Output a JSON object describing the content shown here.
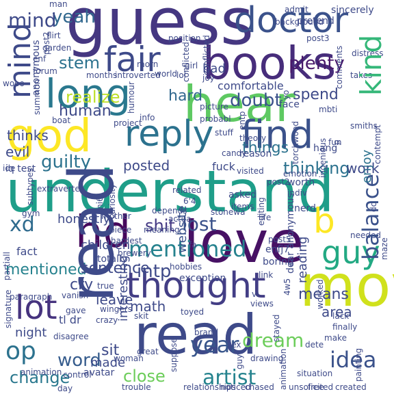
{
  "words": [
    {
      "text": "guess",
      "color": "#453781"
    },
    {
      "text": "doctor",
      "color": "#3b528b"
    },
    {
      "text": "books",
      "color": "#472d7b"
    },
    {
      "text": "hear",
      "color": "#5ec962"
    },
    {
      "text": "long",
      "color": "#2a788e"
    },
    {
      "text": "fair",
      "color": "#3e4a89"
    },
    {
      "text": "god",
      "color": "#fde725"
    },
    {
      "text": "reply",
      "color": "#2c728e"
    },
    {
      "text": "find",
      "color": "#3b528b"
    },
    {
      "text": "understand",
      "color": "#1f9e89"
    },
    {
      "text": "love",
      "color": "#471164"
    },
    {
      "text": "read",
      "color": "#3e4a89"
    },
    {
      "text": "thought",
      "color": "#433e85"
    },
    {
      "text": "movie",
      "color": "#d0e11c"
    },
    {
      "text": "b",
      "color": "#fde725"
    },
    {
      "text": "guy",
      "color": "#23a983"
    },
    {
      "text": "lot",
      "color": "#46337e"
    },
    {
      "text": "op",
      "color": "#2c728e"
    },
    {
      "text": "year",
      "color": "#39568c"
    },
    {
      "text": "dream",
      "color": "#6ccd5a"
    },
    {
      "text": "idea",
      "color": "#3b528b"
    },
    {
      "text": "artist",
      "color": "#25838e"
    },
    {
      "text": "close",
      "color": "#6ccd5a"
    },
    {
      "text": "change",
      "color": "#2a788e"
    },
    {
      "text": "word",
      "color": "#365c8d"
    },
    {
      "text": "xd",
      "color": "#2f6b8e"
    },
    {
      "text": "shit",
      "color": "#443983"
    },
    {
      "text": "lost",
      "color": "#3b528b"
    },
    {
      "text": "mentioned",
      "color": "#26828e"
    },
    {
      "text": "nice",
      "color": "#472d7b"
    },
    {
      "text": "hd",
      "color": "#46085c"
    },
    {
      "text": "kind",
      "color": "#35b779"
    },
    {
      "text": "mind",
      "color": "#3e4a89"
    },
    {
      "text": "stem",
      "color": "#2c728e"
    },
    {
      "text": "yeah",
      "color": "#31688e"
    },
    {
      "text": "doubt",
      "color": "#3b528b"
    },
    {
      "text": "plenty",
      "color": "#48186a"
    },
    {
      "text": "spend",
      "color": "#3e4a89"
    },
    {
      "text": "hard",
      "color": "#31688e"
    },
    {
      "text": "realize",
      "color": "#bddf26"
    },
    {
      "text": "guilty",
      "color": "#2c728e"
    },
    {
      "text": "things",
      "color": "#2c728e"
    },
    {
      "text": "thinking",
      "color": "#2c728e"
    },
    {
      "text": "work",
      "color": "#3e4a89"
    },
    {
      "text": "enjoy",
      "color": "#2c728e"
    },
    {
      "text": "posted",
      "color": "#3e4a89"
    },
    {
      "text": "fuck",
      "color": "#3e4a89"
    },
    {
      "text": "website",
      "color": "#3b528b"
    },
    {
      "text": "balance",
      "color": "#3b528b"
    },
    {
      "text": "sentence",
      "color": "#3e4a89"
    },
    {
      "text": "honestly",
      "color": "#3e4a89"
    },
    {
      "text": "intp",
      "color": "#3e4a89"
    },
    {
      "text": "cry",
      "color": "#3e4a89"
    },
    {
      "text": "leave",
      "color": "#3e4a89"
    },
    {
      "text": "math",
      "color": "#3e4a89"
    },
    {
      "text": "means",
      "color": "#3e4a89"
    },
    {
      "text": "area",
      "color": "#3e4a89"
    },
    {
      "text": "night",
      "color": "#3e4a89"
    },
    {
      "text": "sit",
      "color": "#3e4a89"
    },
    {
      "text": "made",
      "color": "#3e4a89"
    },
    {
      "text": "interesting",
      "color": "#3e4a89"
    },
    {
      "text": "reading",
      "color": "#3e4a89"
    },
    {
      "text": "children",
      "color": "#3e4a89"
    },
    {
      "text": "human",
      "color": "#3e4a89"
    },
    {
      "text": "bad",
      "color": "#3e4a89"
    },
    {
      "text": "comfortable",
      "color": "#3e4a89"
    },
    {
      "text": "tl dr",
      "color": "#3e4a89"
    },
    {
      "text": "evil",
      "color": "#3e4a89"
    },
    {
      "text": "thinks",
      "color": "#3e4a89"
    },
    {
      "text": "anonymous",
      "color": "#3e4a89"
    },
    {
      "text": "iq test",
      "color": "#3e4a89"
    },
    {
      "text": "extraverte",
      "color": "#3e4a89"
    },
    {
      "text": "mother",
      "color": "#3e4a89"
    },
    {
      "text": "depends",
      "color": "#3e4a89"
    },
    {
      "text": "asked",
      "color": "#3e4a89"
    },
    {
      "text": "exception",
      "color": "#3e4a89"
    },
    {
      "text": "dear anonymous",
      "color": "#3e4a89"
    },
    {
      "text": "enfj7",
      "color": "#3e4a89"
    },
    {
      "text": "post5",
      "color": "#3e4a89"
    },
    {
      "text": "4w5",
      "color": "#3e4a89"
    },
    {
      "text": "worked",
      "color": "#3e4a89"
    },
    {
      "text": "boring",
      "color": "#3e4a89"
    },
    {
      "text": "nerd",
      "color": "#3e4a89"
    },
    {
      "text": "dc",
      "color": "#3e4a89"
    },
    {
      "text": "worth",
      "color": "#3e4a89"
    },
    {
      "text": "indiv",
      "color": "#3e4a89"
    },
    {
      "text": "hang",
      "color": "#3e4a89"
    },
    {
      "text": "candy",
      "color": "#3e4a89"
    },
    {
      "text": "theory",
      "color": "#3e4a89"
    },
    {
      "text": "reason",
      "color": "#3e4a89"
    },
    {
      "text": "emotion",
      "color": "#3e4a89"
    },
    {
      "text": "visited",
      "color": "#3e4a89"
    },
    {
      "text": "related",
      "color": "#3e4a89"
    },
    {
      "text": "stuff",
      "color": "#3e4a89"
    },
    {
      "text": "picture",
      "color": "#3e4a89"
    },
    {
      "text": "face",
      "color": "#3e4a89"
    },
    {
      "text": "mbti",
      "color": "#3e4a89"
    },
    {
      "text": "torchwood",
      "color": "#3e4a89"
    },
    {
      "text": "smiths",
      "color": "#3e4a89"
    },
    {
      "text": "contempt",
      "color": "#3e4a89"
    },
    {
      "text": "takes",
      "color": "#3e4a89"
    },
    {
      "text": "distress",
      "color": "#3e4a89"
    },
    {
      "text": "post3",
      "color": "#3e4a89"
    },
    {
      "text": "sincerely",
      "color": "#3e4a89"
    },
    {
      "text": "admit",
      "color": "#3e4a89"
    },
    {
      "text": "pretend",
      "color": "#3e4a89"
    },
    {
      "text": "man",
      "color": "#3e4a89"
    },
    {
      "text": "flirt",
      "color": "#3e4a89"
    },
    {
      "text": "garden",
      "color": "#3e4a89"
    },
    {
      "text": "position",
      "color": "#3e4a89"
    },
    {
      "text": "morn",
      "color": "#3e4a89"
    },
    {
      "text": "world",
      "color": "#3e4a89"
    },
    {
      "text": "girl",
      "color": "#3e4a89"
    },
    {
      "text": "lol",
      "color": "#3e4a89"
    },
    {
      "text": "joy",
      "color": "#3e4a89"
    },
    {
      "text": "introverted",
      "color": "#3e4a89"
    },
    {
      "text": "months",
      "color": "#3e4a89"
    },
    {
      "text": "enf",
      "color": "#3e4a89"
    },
    {
      "text": "forum",
      "color": "#3e4a89"
    },
    {
      "text": "wooo",
      "color": "#3e4a89"
    },
    {
      "text": "boat",
      "color": "#3e4a89"
    },
    {
      "text": "partiall",
      "color": "#3e4a89"
    },
    {
      "text": "ide",
      "color": "#3e4a89"
    },
    {
      "text": "subtypes",
      "color": "#3e4a89"
    },
    {
      "text": "gym",
      "color": "#3e4a89"
    },
    {
      "text": "mi6",
      "color": "#3e4a89"
    },
    {
      "text": "curiosity",
      "color": "#3e4a89"
    },
    {
      "text": "6'4",
      "color": "#3e4a89"
    },
    {
      "text": "stonewa",
      "color": "#3e4a89"
    },
    {
      "text": "items",
      "color": "#3e4a89"
    },
    {
      "text": "life",
      "color": "#3e4a89"
    },
    {
      "text": "actua",
      "color": "#3e4a89"
    },
    {
      "text": "meaning",
      "color": "#3e4a89"
    },
    {
      "text": "piece",
      "color": "#3e4a89"
    },
    {
      "text": "hardest",
      "color": "#3e4a89"
    },
    {
      "text": "brewery",
      "color": "#3e4a89"
    },
    {
      "text": "fact",
      "color": "#3e4a89"
    },
    {
      "text": "totally",
      "color": "#3e4a89"
    },
    {
      "text": "fa",
      "color": "#3e4a89"
    },
    {
      "text": "hobbies",
      "color": "#3e4a89"
    },
    {
      "text": "link",
      "color": "#3e4a89"
    },
    {
      "text": "signature",
      "color": "#3e4a89"
    },
    {
      "text": "paragraph",
      "color": "#3e4a89"
    },
    {
      "text": "vanish",
      "color": "#3e4a89"
    },
    {
      "text": "true",
      "color": "#3e4a89"
    },
    {
      "text": "vi",
      "color": "#3e4a89"
    },
    {
      "text": "views",
      "color": "#3e4a89"
    },
    {
      "text": "stayed",
      "color": "#3e4a89"
    },
    {
      "text": "lack",
      "color": "#3e4a89"
    },
    {
      "text": "finally",
      "color": "#3e4a89"
    },
    {
      "text": "make",
      "color": "#3e4a89"
    },
    {
      "text": "gave",
      "color": "#3e4a89"
    },
    {
      "text": "wingers",
      "color": "#3e4a89"
    },
    {
      "text": "crazy",
      "color": "#3e4a89"
    },
    {
      "text": "skit",
      "color": "#3e4a89"
    },
    {
      "text": "toyed",
      "color": "#3e4a89"
    },
    {
      "text": "brand",
      "color": "#3e4a89"
    },
    {
      "text": "disagree",
      "color": "#3e4a89"
    },
    {
      "text": "great",
      "color": "#3e4a89"
    },
    {
      "text": "sex",
      "color": "#3e4a89"
    },
    {
      "text": "dete",
      "color": "#3e4a89"
    },
    {
      "text": "drawing",
      "color": "#3e4a89"
    },
    {
      "text": "guy",
      "color": "#3e4a89"
    },
    {
      "text": "woman",
      "color": "#3e4a89"
    },
    {
      "text": "suppose",
      "color": "#3e4a89"
    },
    {
      "text": "painting",
      "color": "#3e4a89"
    },
    {
      "text": "animation",
      "color": "#3e4a89"
    },
    {
      "text": "control",
      "color": "#3e4a89"
    },
    {
      "text": "avatar",
      "color": "#3e4a89"
    },
    {
      "text": "trouble",
      "color": "#3e4a89"
    },
    {
      "text": "relationships",
      "color": "#3e4a89"
    },
    {
      "text": "noticed",
      "color": "#3e4a89"
    },
    {
      "text": "chased",
      "color": "#3e4a89"
    },
    {
      "text": "unsolicited",
      "color": "#3e4a89"
    },
    {
      "text": "free",
      "color": "#3e4a89"
    },
    {
      "text": "created",
      "color": "#3e4a89"
    },
    {
      "text": "situation",
      "color": "#3e4a89"
    },
    {
      "text": "day",
      "color": "#3e4a89"
    },
    {
      "text": "needed",
      "color": "#3e4a89"
    },
    {
      "text": "maze",
      "color": "#3e4a89"
    },
    {
      "text": "project",
      "color": "#3e4a89"
    },
    {
      "text": "humour",
      "color": "#3e4a89"
    },
    {
      "text": "info",
      "color": "#3e4a89"
    },
    {
      "text": "entp",
      "color": "#3e4a89"
    },
    {
      "text": "probabl",
      "color": "#3e4a89"
    },
    {
      "text": "yo",
      "color": "#3e4a89"
    },
    {
      "text": "conflicted",
      "color": "#3e4a89"
    },
    {
      "text": "background",
      "color": "#3e4a89"
    },
    {
      "text": "comments",
      "color": "#3e4a89"
    },
    {
      "text": "p",
      "color": "#3e4a89"
    },
    {
      "text": "fun",
      "color": "#3e4a89"
    },
    {
      "text": "ingenious",
      "color": "#3e4a89"
    },
    {
      "text": "summon",
      "color": "#3e4a89"
    },
    {
      "text": "post2",
      "color": "#3e4a89"
    },
    {
      "text": "editing",
      "color": "#3e4a89"
    },
    {
      "text": "es",
      "color": "#3e4a89"
    },
    {
      "text": "ar",
      "color": "#3e4a89"
    },
    {
      "text": "making",
      "color": "#3e4a89"
    }
  ]
}
